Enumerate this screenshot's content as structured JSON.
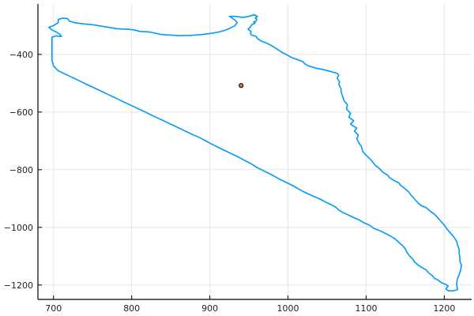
{
  "chart_data": {
    "type": "line",
    "title": "",
    "xlabel": "",
    "ylabel": "",
    "xlim": [
      680,
      1235
    ],
    "ylim": [
      -1250,
      -225
    ],
    "x_ticks": [
      700,
      800,
      900,
      1000,
      1100,
      1200
    ],
    "y_ticks": [
      -400,
      -600,
      -800,
      -1000,
      -1200
    ],
    "x_tick_labels": [
      "700",
      "800",
      "900",
      "1000",
      "1100",
      "1200"
    ],
    "y_tick_labels": [
      "−400",
      "−600",
      "−800",
      "−1000",
      "−1200"
    ],
    "grid": true,
    "legend": "none",
    "series": [
      {
        "type": "line",
        "color": "#009af9",
        "points": [
          [
            698,
            -340
          ],
          [
            703,
            -336
          ],
          [
            710,
            -338
          ],
          [
            708,
            -330
          ],
          [
            704,
            -323
          ],
          [
            698,
            -315
          ],
          [
            694,
            -306
          ],
          [
            700,
            -300
          ],
          [
            706,
            -290
          ],
          [
            706,
            -279
          ],
          [
            712,
            -274
          ],
          [
            718,
            -276
          ],
          [
            720,
            -284
          ],
          [
            727,
            -290
          ],
          [
            738,
            -294
          ],
          [
            752,
            -298
          ],
          [
            768,
            -305
          ],
          [
            782,
            -311
          ],
          [
            795,
            -313
          ],
          [
            803,
            -315
          ],
          [
            810,
            -320
          ],
          [
            822,
            -322
          ],
          [
            838,
            -331
          ],
          [
            850,
            -333
          ],
          [
            860,
            -335
          ],
          [
            875,
            -334
          ],
          [
            890,
            -331
          ],
          [
            902,
            -327
          ],
          [
            912,
            -322
          ],
          [
            920,
            -316
          ],
          [
            926,
            -309
          ],
          [
            932,
            -301
          ],
          [
            935,
            -290
          ],
          [
            932,
            -281
          ],
          [
            928,
            -273
          ],
          [
            925,
            -268
          ],
          [
            932,
            -268
          ],
          [
            938,
            -270
          ],
          [
            942,
            -272
          ],
          [
            950,
            -268
          ],
          [
            955,
            -264
          ],
          [
            958,
            -264
          ],
          [
            957,
            -262
          ],
          [
            958,
            -265
          ],
          [
            961,
            -268
          ],
          [
            958,
            -274
          ],
          [
            960,
            -278
          ],
          [
            959,
            -285
          ],
          [
            956,
            -287
          ],
          [
            958,
            -291
          ],
          [
            954,
            -296
          ],
          [
            952,
            -304
          ],
          [
            949,
            -313
          ],
          [
            953,
            -321
          ],
          [
            952,
            -327
          ],
          [
            953,
            -333
          ],
          [
            959,
            -337
          ],
          [
            961,
            -345
          ],
          [
            966,
            -354
          ],
          [
            970,
            -358
          ],
          [
            978,
            -368
          ],
          [
            984,
            -378
          ],
          [
            993,
            -394
          ],
          [
            996,
            -398
          ],
          [
            1000,
            -404
          ],
          [
            1005,
            -411
          ],
          [
            1010,
            -416
          ],
          [
            1019,
            -425
          ],
          [
            1022,
            -433
          ],
          [
            1024,
            -437
          ],
          [
            1029,
            -442
          ],
          [
            1036,
            -448
          ],
          [
            1044,
            -452
          ],
          [
            1050,
            -456
          ],
          [
            1058,
            -462
          ],
          [
            1063,
            -466
          ],
          [
            1065,
            -472
          ],
          [
            1063,
            -482
          ],
          [
            1066,
            -496
          ],
          [
            1065,
            -502
          ],
          [
            1066,
            -510
          ],
          [
            1068,
            -520
          ],
          [
            1068,
            -530
          ],
          [
            1070,
            -546
          ],
          [
            1072,
            -562
          ],
          [
            1076,
            -574
          ],
          [
            1075,
            -590
          ],
          [
            1080,
            -604
          ],
          [
            1078,
            -618
          ],
          [
            1084,
            -630
          ],
          [
            1080,
            -642
          ],
          [
            1088,
            -656
          ],
          [
            1085,
            -666
          ],
          [
            1090,
            -680
          ],
          [
            1088,
            -692
          ],
          [
            1091,
            -708
          ],
          [
            1094,
            -720
          ],
          [
            1096,
            -738
          ],
          [
            1100,
            -750
          ],
          [
            1104,
            -760
          ],
          [
            1108,
            -772
          ],
          [
            1112,
            -786
          ],
          [
            1117,
            -796
          ],
          [
            1121,
            -808
          ],
          [
            1128,
            -820
          ],
          [
            1130,
            -828
          ],
          [
            1136,
            -838
          ],
          [
            1142,
            -846
          ],
          [
            1144,
            -854
          ],
          [
            1149,
            -864
          ],
          [
            1154,
            -876
          ],
          [
            1158,
            -890
          ],
          [
            1162,
            -902
          ],
          [
            1166,
            -914
          ],
          [
            1170,
            -924
          ],
          [
            1177,
            -932
          ],
          [
            1182,
            -944
          ],
          [
            1188,
            -956
          ],
          [
            1192,
            -968
          ],
          [
            1196,
            -980
          ],
          [
            1200,
            -992
          ],
          [
            1203,
            -1004
          ],
          [
            1206,
            -1014
          ],
          [
            1210,
            -1026
          ],
          [
            1213,
            -1036
          ],
          [
            1216,
            -1050
          ],
          [
            1217,
            -1062
          ],
          [
            1219,
            -1076
          ],
          [
            1219,
            -1090
          ],
          [
            1220,
            -1104
          ],
          [
            1220,
            -1118
          ],
          [
            1222,
            -1132
          ],
          [
            1221,
            -1148
          ],
          [
            1219,
            -1164
          ],
          [
            1217,
            -1178
          ],
          [
            1216,
            -1190
          ],
          [
            1216,
            -1202
          ],
          [
            1217,
            -1216
          ],
          [
            1212,
            -1220
          ],
          [
            1205,
            -1220
          ],
          [
            1202,
            -1213
          ],
          [
            1205,
            -1204
          ],
          [
            1202,
            -1198
          ],
          [
            1197,
            -1193
          ],
          [
            1192,
            -1183
          ],
          [
            1187,
            -1176
          ],
          [
            1185,
            -1168
          ],
          [
            1180,
            -1158
          ],
          [
            1177,
            -1148
          ],
          [
            1172,
            -1140
          ],
          [
            1167,
            -1132
          ],
          [
            1162,
            -1120
          ],
          [
            1159,
            -1108
          ],
          [
            1155,
            -1098
          ],
          [
            1152,
            -1085
          ],
          [
            1150,
            -1074
          ],
          [
            1146,
            -1062
          ],
          [
            1141,
            -1050
          ],
          [
            1137,
            -1040
          ],
          [
            1131,
            -1030
          ],
          [
            1124,
            -1020
          ],
          [
            1118,
            -1012
          ],
          [
            1110,
            -1004
          ],
          [
            1104,
            -992
          ],
          [
            1097,
            -984
          ],
          [
            1091,
            -974
          ],
          [
            1084,
            -966
          ],
          [
            1078,
            -958
          ],
          [
            1070,
            -948
          ],
          [
            1065,
            -940
          ],
          [
            1061,
            -930
          ],
          [
            1054,
            -920
          ],
          [
            1048,
            -912
          ],
          [
            1041,
            -902
          ],
          [
            1034,
            -894
          ],
          [
            1026,
            -884
          ],
          [
            1019,
            -875
          ],
          [
            1013,
            -866
          ],
          [
            1008,
            -858
          ],
          [
            1002,
            -850
          ],
          [
            996,
            -842
          ],
          [
            990,
            -834
          ],
          [
            984,
            -825
          ],
          [
            978,
            -816
          ],
          [
            972,
            -808
          ],
          [
            966,
            -800
          ],
          [
            960,
            -792
          ],
          [
            955,
            -783
          ],
          [
            949,
            -774
          ],
          [
            943,
            -766
          ],
          [
            938,
            -758
          ],
          [
            931,
            -749
          ],
          [
            924,
            -740
          ],
          [
            918,
            -732
          ],
          [
            912,
            -724
          ],
          [
            906,
            -716
          ],
          [
            900,
            -708
          ],
          [
            894,
            -699
          ],
          [
            888,
            -690
          ],
          [
            881,
            -682
          ],
          [
            874,
            -673
          ],
          [
            867,
            -664
          ],
          [
            860,
            -655
          ],
          [
            853,
            -646
          ],
          [
            846,
            -637
          ],
          [
            839,
            -628
          ],
          [
            832,
            -619
          ],
          [
            825,
            -610
          ],
          [
            818,
            -601
          ],
          [
            811,
            -592
          ],
          [
            804,
            -583
          ],
          [
            797,
            -574
          ],
          [
            790,
            -565
          ],
          [
            783,
            -556
          ],
          [
            776,
            -547
          ],
          [
            769,
            -538
          ],
          [
            762,
            -529
          ],
          [
            755,
            -520
          ],
          [
            748,
            -511
          ],
          [
            741,
            -502
          ],
          [
            734,
            -493
          ],
          [
            727,
            -484
          ],
          [
            720,
            -475
          ],
          [
            713,
            -466
          ],
          [
            706,
            -457
          ],
          [
            700,
            -440
          ],
          [
            698,
            -420
          ],
          [
            698,
            -400
          ],
          [
            698,
            -380
          ],
          [
            698,
            -360
          ],
          [
            698,
            -340
          ]
        ]
      },
      {
        "type": "scatter",
        "color": "#e26f46",
        "points": [
          [
            940,
            -508
          ]
        ]
      }
    ]
  }
}
